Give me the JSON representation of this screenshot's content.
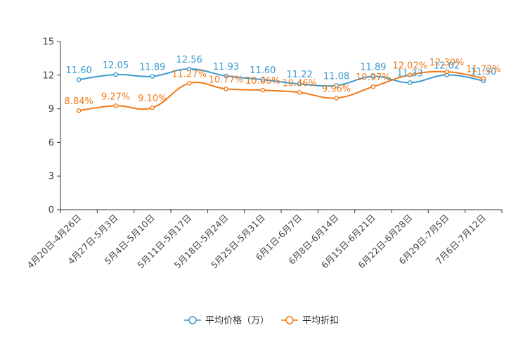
{
  "chart_data": {
    "type": "line",
    "title": "",
    "xlabel": "",
    "ylabel": "",
    "ylim": [
      0,
      15
    ],
    "yticks": [
      0,
      3,
      6,
      9,
      12,
      15
    ],
    "grid": false,
    "legend_position": "bottom-center",
    "categories": [
      "4月20日-4月26日",
      "4月27日-5月3日",
      "5月4日-5月10日",
      "5月11日-5月17日",
      "5月18日-5月24日",
      "5月25日-5月31日",
      "6月1日-6月7日",
      "6月8日-6月14日",
      "6月15日-6月21日",
      "6月22日-6月28日",
      "6月29日-7月5日",
      "7月6日-7月12日"
    ],
    "series": [
      {
        "name": "平均价格（万）",
        "color": "#3a9bd0",
        "values": [
          11.6,
          12.05,
          11.89,
          12.56,
          11.93,
          11.6,
          11.22,
          11.08,
          11.89,
          11.33,
          12.02,
          11.5
        ],
        "labels": [
          "11.60",
          "12.05",
          "11.89",
          "12.56",
          "11.93",
          "11.60",
          "11.22",
          "11.08",
          "11.89",
          "11.33",
          "12.02",
          "11.50"
        ]
      },
      {
        "name": "平均折扣",
        "color": "#f07a17",
        "values": [
          8.84,
          9.27,
          9.1,
          11.27,
          10.77,
          10.66,
          10.46,
          9.96,
          10.97,
          12.02,
          12.3,
          11.72
        ],
        "labels": [
          "8.84%",
          "9.27%",
          "9.10%",
          "11.27%",
          "10.77%",
          "10.66%",
          "10.46%",
          "9.96%",
          "10.97%",
          "12.02%",
          "12.30%",
          "11.72%"
        ]
      }
    ]
  }
}
